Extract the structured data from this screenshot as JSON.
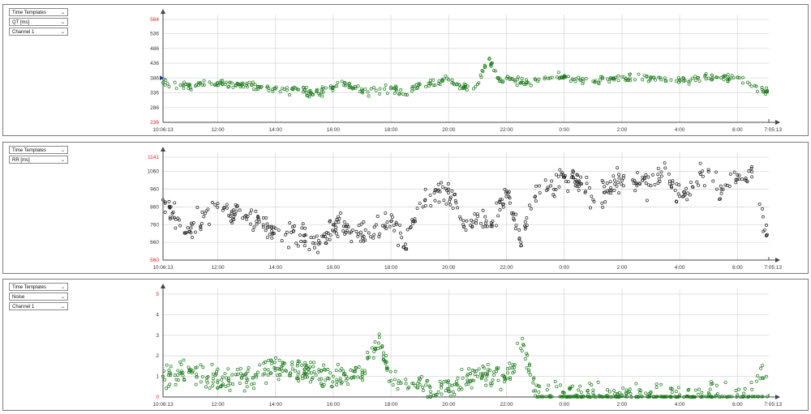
{
  "panels": [
    {
      "dropdowns": [
        "Time Templates",
        "QT [ms]",
        "Channel 1"
      ],
      "y_ticks": [
        "236",
        "286",
        "336",
        "386",
        "436",
        "486",
        "536",
        "584"
      ],
      "y_min_label": "236",
      "y_max_label": "584",
      "x_start": "10:06:13",
      "x_end": "7:05:13"
    },
    {
      "dropdowns": [
        "Time Templates",
        "RR [ms]"
      ],
      "y_ticks": [
        "560",
        "660",
        "760",
        "860",
        "960",
        "1060",
        "1141"
      ],
      "y_min_label": "560",
      "y_max_label": "1141",
      "x_start": "10:06:13",
      "x_end": "7:05:13"
    },
    {
      "dropdowns": [
        "Time Templates",
        "Noise",
        "Channel 1"
      ],
      "y_ticks": [
        "0",
        "1",
        "2",
        "3",
        "4",
        "5"
      ],
      "y_min_label": "0",
      "y_max_label": "5",
      "x_start": "10:06:13",
      "x_end": "7:05:13"
    }
  ],
  "x_tick_labels": [
    "12:00",
    "14:00",
    "16:00",
    "18:00",
    "20:00",
    "22:00",
    "0:00",
    "2:00",
    "4:00",
    "6:00"
  ],
  "colors": {
    "axis_limit": "#e02020",
    "qt_series": "#1a7a1a",
    "rr_series": "#222222",
    "noise_series": "#1a7a1a",
    "grid": "#d9d9d9"
  },
  "icons": {
    "dropdown": "chevron-down-icon"
  },
  "chart_data": [
    {
      "type": "scatter",
      "xlabel": "",
      "ylabel": "QT [ms]",
      "x_range": [
        "10:06:13",
        "7:05:13"
      ],
      "ylim": [
        236,
        584
      ],
      "grid": true,
      "series": [
        {
          "color": "#1a7a1a",
          "x_hours": [
            10.1,
            11,
            12,
            13,
            14,
            15,
            15.3,
            16,
            16.4,
            17,
            18,
            18.5,
            19,
            20,
            20.5,
            21,
            21.4,
            21.8,
            22,
            22.7,
            23,
            0,
            1,
            2,
            3,
            4,
            5,
            6,
            7
          ],
          "y": [
            370,
            360,
            368,
            362,
            350,
            345,
            330,
            355,
            370,
            340,
            350,
            330,
            365,
            380,
            355,
            365,
            450,
            375,
            385,
            370,
            380,
            390,
            375,
            390,
            385,
            380,
            385,
            388,
            340
          ]
        }
      ]
    },
    {
      "type": "scatter",
      "xlabel": "",
      "ylabel": "RR [ms]",
      "x_range": [
        "10:06:13",
        "7:05:13"
      ],
      "ylim": [
        560,
        1141
      ],
      "grid": true,
      "series": [
        {
          "color": "#222222",
          "x_hours": [
            10.1,
            10.5,
            11,
            12,
            13,
            14,
            15,
            15.5,
            16,
            17,
            18,
            18.5,
            19,
            19.5,
            20,
            20.5,
            21,
            21.5,
            22,
            22.5,
            23,
            0,
            0.5,
            1,
            1.5,
            2,
            3,
            3.5,
            4,
            5,
            5.5,
            6,
            6.5,
            7
          ],
          "y": [
            900,
            800,
            720,
            880,
            790,
            740,
            700,
            650,
            760,
            700,
            780,
            650,
            880,
            940,
            960,
            760,
            820,
            760,
            950,
            660,
            920,
            1030,
            1000,
            900,
            950,
            1010,
            980,
            1080,
            920,
            1060,
            960,
            1040,
            1030,
            700
          ]
        }
      ]
    },
    {
      "type": "scatter",
      "xlabel": "",
      "ylabel": "Noise",
      "x_range": [
        "10:06:13",
        "7:05:13"
      ],
      "ylim": [
        0,
        5
      ],
      "grid": true,
      "series": [
        {
          "color": "#1a7a1a",
          "x_hours": [
            10.1,
            11,
            12,
            13,
            14,
            15,
            16,
            17,
            17.6,
            18,
            19,
            20,
            21,
            22,
            22.6,
            23,
            0,
            1,
            2,
            3,
            4,
            5,
            6,
            7
          ],
          "y": [
            1.0,
            1.2,
            0.8,
            0.9,
            1.4,
            1.2,
            1.0,
            1.1,
            2.9,
            0.8,
            0.6,
            0.4,
            1.0,
            0.9,
            2.5,
            0.3,
            0.2,
            0.2,
            0.1,
            0.2,
            0.1,
            0.2,
            0.1,
            1.0
          ]
        }
      ]
    }
  ]
}
